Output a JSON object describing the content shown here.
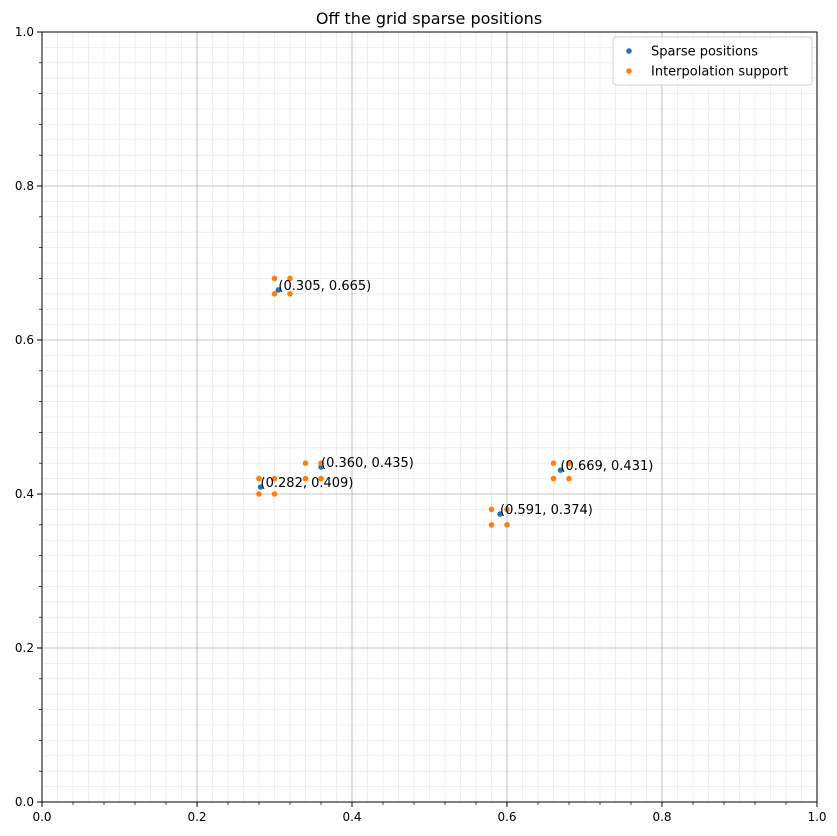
{
  "chart_data": {
    "type": "scatter",
    "title": "Off the grid sparse positions",
    "xlabel": "",
    "ylabel": "",
    "xlim": [
      0,
      1
    ],
    "ylim": [
      0,
      1
    ],
    "xticks": [
      "0.0",
      "0.2",
      "0.4",
      "0.6",
      "0.8",
      "1.0"
    ],
    "yticks": [
      "0.0",
      "0.2",
      "0.4",
      "0.6",
      "0.8",
      "1.0"
    ],
    "grid": true,
    "minor_grid": true,
    "legend_position": "top-right",
    "series": [
      {
        "name": "Sparse positions",
        "color": "#1f77b4",
        "points": [
          {
            "x": 0.305,
            "y": 0.665
          },
          {
            "x": 0.36,
            "y": 0.435
          },
          {
            "x": 0.282,
            "y": 0.409
          },
          {
            "x": 0.669,
            "y": 0.431
          },
          {
            "x": 0.591,
            "y": 0.374
          }
        ]
      },
      {
        "name": "Interpolation support",
        "color": "#ff7f0e",
        "points": [
          {
            "x": 0.3,
            "y": 0.66
          },
          {
            "x": 0.32,
            "y": 0.66
          },
          {
            "x": 0.3,
            "y": 0.68
          },
          {
            "x": 0.32,
            "y": 0.68
          },
          {
            "x": 0.34,
            "y": 0.42
          },
          {
            "x": 0.36,
            "y": 0.42
          },
          {
            "x": 0.34,
            "y": 0.44
          },
          {
            "x": 0.36,
            "y": 0.44
          },
          {
            "x": 0.28,
            "y": 0.4
          },
          {
            "x": 0.3,
            "y": 0.4
          },
          {
            "x": 0.28,
            "y": 0.42
          },
          {
            "x": 0.3,
            "y": 0.42
          },
          {
            "x": 0.66,
            "y": 0.42
          },
          {
            "x": 0.68,
            "y": 0.42
          },
          {
            "x": 0.66,
            "y": 0.44
          },
          {
            "x": 0.68,
            "y": 0.44
          },
          {
            "x": 0.58,
            "y": 0.36
          },
          {
            "x": 0.6,
            "y": 0.36
          },
          {
            "x": 0.58,
            "y": 0.38
          },
          {
            "x": 0.6,
            "y": 0.38
          }
        ]
      }
    ],
    "annotations": [
      {
        "text": "(0.305, 0.665)",
        "x": 0.305,
        "y": 0.665
      },
      {
        "text": "(0.360, 0.435)",
        "x": 0.36,
        "y": 0.435
      },
      {
        "text": "(0.282, 0.409)",
        "x": 0.282,
        "y": 0.409
      },
      {
        "text": "(0.669, 0.431)",
        "x": 0.669,
        "y": 0.431
      },
      {
        "text": "(0.591, 0.374)",
        "x": 0.591,
        "y": 0.374
      }
    ]
  }
}
